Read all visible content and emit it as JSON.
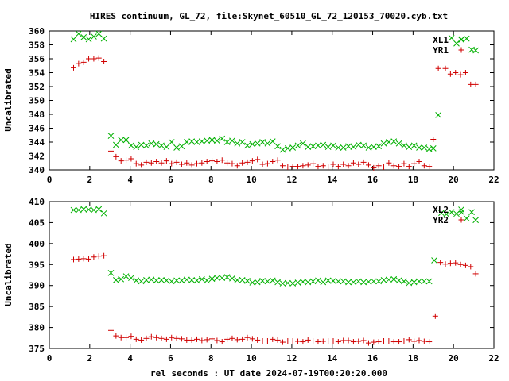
{
  "title": "HIRES continuum, GL_72, file:Skynet_60510_GL_72_120153_70020.cyb.txt",
  "xlabel": "rel seconds : UT date 2024-07-19T00:20:20.000",
  "colors": {
    "green": "#00b000",
    "red": "#d00000"
  },
  "chart_data": [
    {
      "type": "scatter",
      "ylabel": "Uncalibrated",
      "xlim": [
        0,
        22
      ],
      "ylim": [
        340,
        360
      ],
      "xticks": [
        0,
        2,
        4,
        6,
        8,
        10,
        12,
        14,
        16,
        18,
        20,
        22
      ],
      "yticks": [
        340,
        342,
        344,
        346,
        348,
        350,
        352,
        354,
        356,
        358,
        360
      ],
      "legend": "top-right",
      "series": [
        {
          "name": "XL1",
          "marker": "x",
          "color": "#00b000",
          "x": [
            1.2,
            1.45,
            1.7,
            1.95,
            2.2,
            2.45,
            2.7,
            3.05,
            3.3,
            3.55,
            3.8,
            4.05,
            4.3,
            4.55,
            4.8,
            5.05,
            5.3,
            5.55,
            5.8,
            6.05,
            6.3,
            6.55,
            6.8,
            7.05,
            7.3,
            7.55,
            7.8,
            8.05,
            8.3,
            8.55,
            8.8,
            9.05,
            9.3,
            9.55,
            9.8,
            10.05,
            10.3,
            10.55,
            10.8,
            11.05,
            11.3,
            11.55,
            11.8,
            12.05,
            12.3,
            12.55,
            12.8,
            13.05,
            13.3,
            13.55,
            13.8,
            14.05,
            14.3,
            14.55,
            14.8,
            15.05,
            15.3,
            15.55,
            15.8,
            16.05,
            16.3,
            16.55,
            16.8,
            17.05,
            17.3,
            17.55,
            17.8,
            18.05,
            18.3,
            18.55,
            18.8,
            19.0,
            19.25,
            19.9,
            20.15,
            20.4,
            20.65,
            20.9,
            21.1
          ],
          "y": [
            358.8,
            359.6,
            359.1,
            358.8,
            359.2,
            359.6,
            358.9,
            344.9,
            343.6,
            344.3,
            344.3,
            343.5,
            343.3,
            343.6,
            343.5,
            343.8,
            343.7,
            343.5,
            343.3,
            344.0,
            343.2,
            343.4,
            344.0,
            344.1,
            344.0,
            344.1,
            344.2,
            344.3,
            344.2,
            344.5,
            344.0,
            344.2,
            343.8,
            344.0,
            343.5,
            343.7,
            343.8,
            344.0,
            343.8,
            344.1,
            343.4,
            342.9,
            343.1,
            343.2,
            343.5,
            343.8,
            343.3,
            343.4,
            343.5,
            343.6,
            343.3,
            343.5,
            343.2,
            343.2,
            343.4,
            343.3,
            343.6,
            343.5,
            343.2,
            343.3,
            343.4,
            343.8,
            344.0,
            344.1,
            343.8,
            343.5,
            343.3,
            343.5,
            343.2,
            343.2,
            343.0,
            343.1,
            347.9,
            359.0,
            358.2,
            358.8,
            358.9,
            357.3,
            357.2
          ]
        },
        {
          "name": "YR1",
          "marker": "+",
          "color": "#d00000",
          "x": [
            1.2,
            1.45,
            1.7,
            1.95,
            2.2,
            2.45,
            2.7,
            3.05,
            3.3,
            3.55,
            3.8,
            4.05,
            4.3,
            4.55,
            4.8,
            5.05,
            5.3,
            5.55,
            5.8,
            6.05,
            6.3,
            6.55,
            6.8,
            7.05,
            7.3,
            7.55,
            7.8,
            8.05,
            8.3,
            8.55,
            8.8,
            9.05,
            9.3,
            9.55,
            9.8,
            10.05,
            10.3,
            10.55,
            10.8,
            11.05,
            11.3,
            11.55,
            11.8,
            12.05,
            12.3,
            12.55,
            12.8,
            13.05,
            13.3,
            13.55,
            13.8,
            14.05,
            14.3,
            14.55,
            14.8,
            15.05,
            15.3,
            15.55,
            15.8,
            16.05,
            16.3,
            16.55,
            16.8,
            17.05,
            17.3,
            17.55,
            17.8,
            18.05,
            18.3,
            18.55,
            18.8,
            19.0,
            19.25,
            19.6,
            19.85,
            20.1,
            20.35,
            20.6,
            20.85,
            21.1
          ],
          "y": [
            354.7,
            355.3,
            355.5,
            356.0,
            356.0,
            356.1,
            355.6,
            342.7,
            341.9,
            341.3,
            341.4,
            341.6,
            340.9,
            340.7,
            341.1,
            341.0,
            341.2,
            341.0,
            341.3,
            340.9,
            341.1,
            340.8,
            341.0,
            340.7,
            340.9,
            341.0,
            341.2,
            341.3,
            341.2,
            341.4,
            341.0,
            340.9,
            340.6,
            341.0,
            341.1,
            341.3,
            341.5,
            340.8,
            340.9,
            341.2,
            341.4,
            340.6,
            340.4,
            340.5,
            340.5,
            340.6,
            340.7,
            340.9,
            340.5,
            340.6,
            340.4,
            340.8,
            340.5,
            340.8,
            340.6,
            341.0,
            340.8,
            341.1,
            340.7,
            340.3,
            340.6,
            340.4,
            341.0,
            340.6,
            340.5,
            340.9,
            340.5,
            340.9,
            341.2,
            340.6,
            340.5,
            344.4,
            354.6,
            354.6,
            353.8,
            354.0,
            353.7,
            354.0,
            352.3,
            352.3
          ]
        }
      ]
    },
    {
      "type": "scatter",
      "ylabel": "Uncalibrated",
      "xlim": [
        0,
        22
      ],
      "ylim": [
        375,
        410
      ],
      "xticks": [
        0,
        2,
        4,
        6,
        8,
        10,
        12,
        14,
        16,
        18,
        20,
        22
      ],
      "yticks": [
        375,
        380,
        385,
        390,
        395,
        400,
        405,
        410
      ],
      "legend": "top-right",
      "series": [
        {
          "name": "XL2",
          "marker": "x",
          "color": "#00b000",
          "x": [
            1.2,
            1.45,
            1.7,
            1.95,
            2.2,
            2.45,
            2.7,
            3.05,
            3.3,
            3.55,
            3.8,
            4.05,
            4.3,
            4.55,
            4.8,
            5.05,
            5.3,
            5.55,
            5.8,
            6.05,
            6.3,
            6.55,
            6.8,
            7.05,
            7.3,
            7.55,
            7.8,
            8.05,
            8.3,
            8.55,
            8.8,
            9.05,
            9.3,
            9.55,
            9.8,
            10.05,
            10.3,
            10.55,
            10.8,
            11.05,
            11.3,
            11.55,
            11.8,
            12.05,
            12.3,
            12.55,
            12.8,
            13.05,
            13.3,
            13.55,
            13.8,
            14.05,
            14.3,
            14.55,
            14.8,
            15.05,
            15.3,
            15.55,
            15.8,
            16.05,
            16.3,
            16.55,
            16.8,
            17.05,
            17.3,
            17.55,
            17.8,
            18.05,
            18.3,
            18.55,
            18.8,
            19.05,
            19.4,
            19.65,
            19.9,
            20.15,
            20.4,
            20.65,
            20.9,
            21.1
          ],
          "y": [
            408.0,
            408.0,
            408.2,
            408.1,
            408.0,
            408.2,
            407.2,
            393.0,
            391.3,
            391.5,
            392.2,
            391.8,
            391.2,
            391.0,
            391.3,
            391.4,
            391.2,
            391.3,
            391.2,
            391.0,
            391.2,
            391.2,
            391.4,
            391.3,
            391.2,
            391.5,
            391.2,
            391.6,
            391.8,
            391.8,
            392.0,
            391.7,
            391.3,
            391.3,
            391.1,
            390.7,
            390.8,
            391.1,
            391.0,
            391.2,
            390.8,
            390.5,
            390.6,
            390.5,
            390.7,
            390.9,
            390.8,
            391.0,
            391.2,
            390.8,
            391.2,
            391.1,
            391.0,
            391.0,
            390.8,
            390.8,
            391.0,
            390.8,
            390.9,
            391.0,
            391.0,
            391.3,
            391.4,
            391.5,
            391.2,
            391.0,
            390.6,
            390.8,
            391.0,
            391.0,
            391.0,
            396.0,
            407.3,
            407.0,
            407.5,
            407.1,
            407.5,
            406.0,
            407.5,
            405.6
          ]
        },
        {
          "name": "YR2",
          "marker": "+",
          "color": "#d00000",
          "x": [
            1.2,
            1.45,
            1.7,
            1.95,
            2.2,
            2.45,
            2.7,
            3.05,
            3.3,
            3.55,
            3.8,
            4.05,
            4.3,
            4.55,
            4.8,
            5.05,
            5.3,
            5.55,
            5.8,
            6.05,
            6.3,
            6.55,
            6.8,
            7.05,
            7.3,
            7.55,
            7.8,
            8.05,
            8.3,
            8.55,
            8.8,
            9.05,
            9.3,
            9.55,
            9.8,
            10.05,
            10.3,
            10.55,
            10.8,
            11.05,
            11.3,
            11.55,
            11.8,
            12.05,
            12.3,
            12.55,
            12.8,
            13.05,
            13.3,
            13.55,
            13.8,
            14.05,
            14.3,
            14.55,
            14.8,
            15.05,
            15.3,
            15.55,
            15.8,
            16.05,
            16.3,
            16.55,
            16.8,
            17.05,
            17.3,
            17.55,
            17.8,
            18.05,
            18.3,
            18.55,
            18.8,
            19.1,
            19.35,
            19.6,
            19.85,
            20.1,
            20.35,
            20.6,
            20.85,
            21.1
          ],
          "y": [
            396.2,
            396.3,
            396.4,
            396.3,
            396.8,
            397.0,
            397.1,
            379.3,
            378.0,
            377.6,
            377.6,
            377.9,
            377.2,
            377.0,
            377.4,
            377.8,
            377.6,
            377.4,
            377.2,
            377.6,
            377.4,
            377.3,
            377.0,
            377.0,
            377.2,
            376.9,
            377.1,
            377.3,
            376.9,
            376.6,
            377.2,
            377.4,
            377.1,
            377.2,
            377.6,
            377.3,
            377.0,
            376.8,
            376.8,
            377.2,
            377.0,
            376.5,
            376.8,
            376.8,
            376.7,
            376.6,
            377.0,
            376.8,
            376.6,
            376.7,
            376.8,
            376.8,
            376.6,
            376.9,
            376.9,
            376.6,
            376.7,
            376.9,
            376.3,
            376.5,
            376.6,
            376.8,
            376.8,
            376.6,
            376.6,
            376.8,
            377.1,
            376.7,
            376.9,
            376.7,
            376.6,
            382.7,
            395.5,
            395.1,
            395.3,
            395.4,
            395.0,
            394.8,
            394.5,
            392.8
          ]
        }
      ]
    }
  ]
}
